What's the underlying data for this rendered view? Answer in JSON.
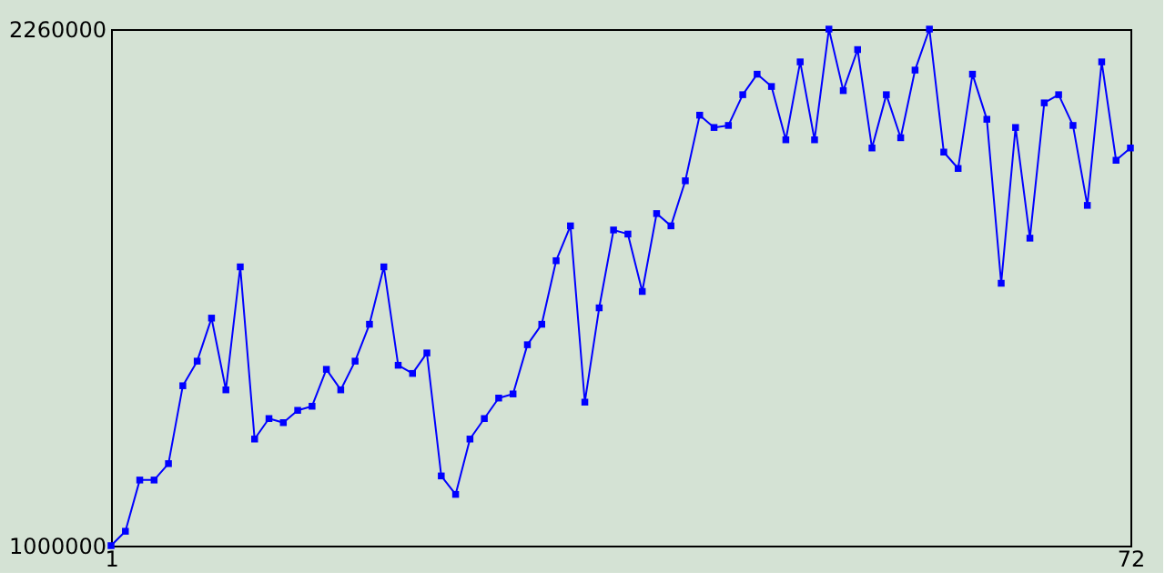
{
  "chart_data": {
    "type": "line",
    "marker": "square",
    "grid": false,
    "x": [
      1,
      2,
      3,
      4,
      5,
      6,
      7,
      8,
      9,
      10,
      11,
      12,
      13,
      14,
      15,
      16,
      17,
      18,
      19,
      20,
      21,
      22,
      23,
      24,
      25,
      26,
      27,
      28,
      29,
      30,
      31,
      32,
      33,
      34,
      35,
      36,
      37,
      38,
      39,
      40,
      41,
      42,
      43,
      44,
      45,
      46,
      47,
      48,
      49,
      50,
      51,
      52,
      53,
      54,
      55,
      56,
      57,
      58,
      59,
      60,
      61,
      62,
      63,
      64,
      65,
      66,
      67,
      68,
      69,
      70,
      71,
      72
    ],
    "series": [
      {
        "color": "#0000ff",
        "values": [
          1000000,
          1035000,
          1160000,
          1160000,
          1200000,
          1390000,
          1450000,
          1555000,
          1380000,
          1680000,
          1260000,
          1310000,
          1300000,
          1330000,
          1340000,
          1430000,
          1380000,
          1450000,
          1540000,
          1680000,
          1440000,
          1420000,
          1470000,
          1170000,
          1125000,
          1260000,
          1310000,
          1360000,
          1370000,
          1490000,
          1540000,
          1695000,
          1780000,
          1350000,
          1580000,
          1770000,
          1760000,
          1620000,
          1810000,
          1780000,
          1890000,
          2050000,
          2020000,
          2025000,
          2100000,
          2150000,
          2120000,
          1990000,
          2180000,
          1990000,
          2260000,
          2110000,
          2210000,
          1970000,
          2100000,
          1995000,
          2160000,
          2260000,
          1960000,
          1920000,
          2150000,
          2040000,
          1640000,
          2020000,
          1750000,
          2080000,
          2100000,
          2025000,
          1830000,
          2180000,
          1940000,
          1970000
        ]
      }
    ],
    "xlim": [
      1,
      72
    ],
    "xticks": [
      1,
      72
    ],
    "ylim": [
      1000000,
      2260000
    ],
    "yticks": [
      1000000,
      2260000
    ]
  }
}
